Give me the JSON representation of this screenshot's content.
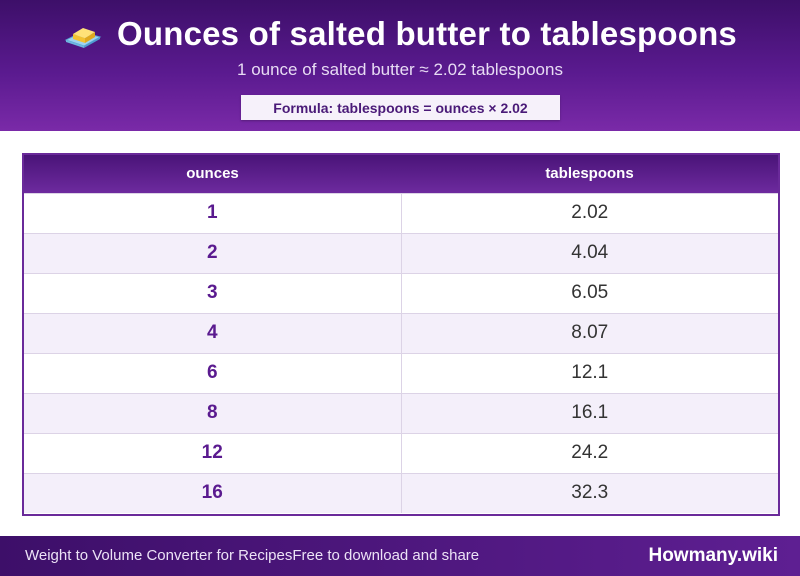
{
  "header": {
    "title": "Ounces of salted butter to tablespoons",
    "icon": "butter-icon",
    "subtitle": "1 ounce of salted butter ≈ 2.02 tablespoons",
    "formula": "Formula: tablespoons = ounces × 2.02"
  },
  "table": {
    "headers": [
      "ounces",
      "tablespoons"
    ],
    "rows": [
      [
        "1",
        "2.02"
      ],
      [
        "2",
        "4.04"
      ],
      [
        "3",
        "6.05"
      ],
      [
        "4",
        "8.07"
      ],
      [
        "6",
        "12.1"
      ],
      [
        "8",
        "16.1"
      ],
      [
        "12",
        "24.2"
      ],
      [
        "16",
        "32.3"
      ]
    ]
  },
  "footer": {
    "left_a": "Weight to Volume Converter for Recipes",
    "left_b": "Free to download and share",
    "brand": "Howmany.wiki"
  },
  "colors": {
    "header_purple": "#5a1a8f",
    "accent_text": "#5a1a8f",
    "row_alt": "#f4effa"
  }
}
